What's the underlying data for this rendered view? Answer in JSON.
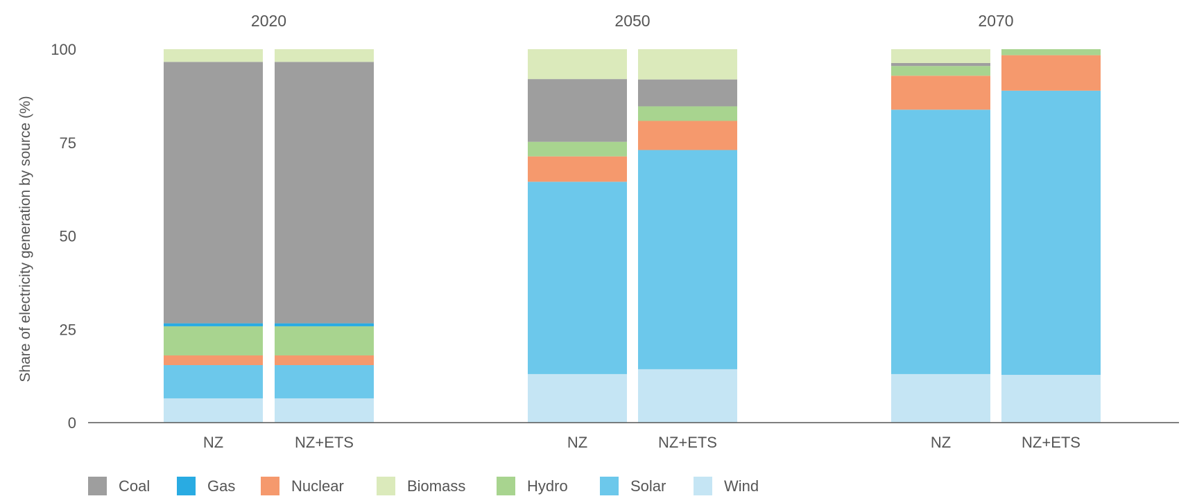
{
  "chart_data": {
    "type": "bar",
    "stacked": true,
    "title": "",
    "ylabel": "Share of electricity generation by source (%)",
    "xlabel": "",
    "ylim": [
      0,
      100
    ],
    "yticks": [
      0,
      25,
      50,
      75,
      100
    ],
    "grid": false,
    "legend_position": "bottom-left",
    "groups": [
      "2020",
      "2050",
      "2070"
    ],
    "categories": [
      "NZ",
      "NZ+ETS"
    ],
    "series": [
      {
        "name": "Wind",
        "color": "#c5e5f4",
        "values": {
          "2020": [
            6.5,
            6.5
          ],
          "2050": [
            13.0,
            14.3
          ],
          "2070": [
            13.0,
            12.8
          ]
        }
      },
      {
        "name": "Solar",
        "color": "#6cc8eb",
        "values": {
          "2020": [
            8.9,
            8.9
          ],
          "2050": [
            51.5,
            58.7
          ],
          "2070": [
            70.8,
            76.1
          ]
        }
      },
      {
        "name": "Nuclear",
        "color": "#f5996d",
        "values": {
          "2020": [
            2.6,
            2.6
          ],
          "2050": [
            6.8,
            7.8
          ],
          "2070": [
            9.1,
            9.5
          ]
        }
      },
      {
        "name": "Hydro",
        "color": "#a8d48f",
        "values": {
          "2020": [
            7.8,
            7.8
          ],
          "2050": [
            3.9,
            3.9
          ],
          "2070": [
            2.6,
            1.6
          ]
        }
      },
      {
        "name": "Gas",
        "color": "#29abe2",
        "values": {
          "2020": [
            0.8,
            0.8
          ],
          "2050": [
            0,
            0
          ],
          "2070": [
            0,
            0
          ]
        }
      },
      {
        "name": "Coal",
        "color": "#9e9e9e",
        "values": {
          "2020": [
            70.0,
            70.0
          ],
          "2050": [
            16.8,
            7.2
          ],
          "2070": [
            0.8,
            0
          ]
        }
      },
      {
        "name": "Biomass",
        "color": "#dbeabb",
        "values": {
          "2020": [
            3.4,
            3.4
          ],
          "2050": [
            8.0,
            8.1
          ],
          "2070": [
            3.7,
            0
          ]
        }
      }
    ],
    "legend_order": [
      "Coal",
      "Gas",
      "Nuclear",
      "Biomass",
      "Hydro",
      "Solar",
      "Wind"
    ]
  }
}
